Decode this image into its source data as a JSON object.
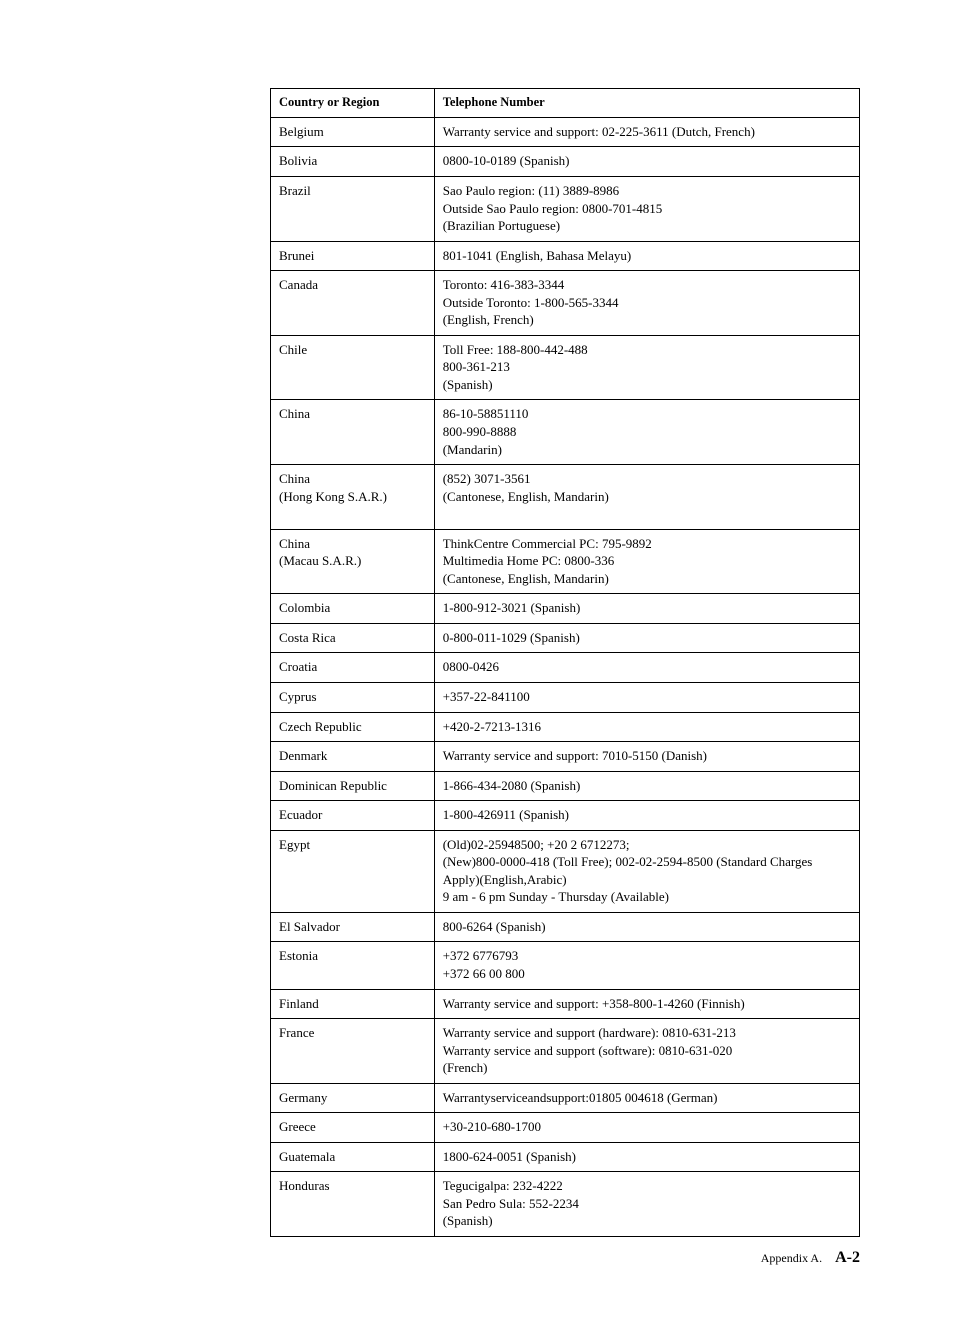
{
  "table": {
    "headers": {
      "country": "Country or Region",
      "phone": "Telephone Number"
    },
    "rows": [
      {
        "country": "Belgium",
        "phone": "Warranty service and support: 02-225-3611 (Dutch, French)"
      },
      {
        "country": "Bolivia",
        "phone": "0800-10-0189 (Spanish)"
      },
      {
        "country": "Brazil",
        "phone": "Sao Paulo region: (11) 3889-8986\nOutside Sao Paulo region: 0800-701-4815\n(Brazilian Portuguese)"
      },
      {
        "country": "Brunei",
        "phone": "801-1041 (English, Bahasa Melayu)"
      },
      {
        "country": "Canada",
        "phone": "Toronto: 416-383-3344\nOutside Toronto: 1-800-565-3344\n(English, French)"
      },
      {
        "country": "Chile",
        "phone": "Toll Free: 188-800-442-488\n800-361-213\n(Spanish)"
      },
      {
        "country": "China",
        "phone": "86-10-58851110\n800-990-8888\n(Mandarin)"
      },
      {
        "country": "China\n(Hong Kong S.A.R.)",
        "phone": "(852) 3071-3561\n(Cantonese, English, Mandarin)\n "
      },
      {
        "country": "China\n(Macau S.A.R.)",
        "phone": "ThinkCentre Commercial PC: 795-9892\nMultimedia Home PC: 0800-336\n(Cantonese, English, Mandarin)"
      },
      {
        "country": "Colombia",
        "phone": "1-800-912-3021 (Spanish)"
      },
      {
        "country": "Costa Rica",
        "phone": "0-800-011-1029 (Spanish)"
      },
      {
        "country": "Croatia",
        "phone": "0800-0426"
      },
      {
        "country": "Cyprus",
        "phone": "+357-22-841100"
      },
      {
        "country": "Czech Republic",
        "phone": "+420-2-7213-1316"
      },
      {
        "country": "Denmark",
        "phone": "Warranty service and support: 7010-5150 (Danish)"
      },
      {
        "country": "Dominican Republic",
        "phone": "1-866-434-2080 (Spanish)"
      },
      {
        "country": "Ecuador",
        "phone": "1-800-426911 (Spanish)"
      },
      {
        "country": "Egypt",
        "phone": "(Old)02-25948500;  +20 2 6712273;\n(New)800-0000-418 (Toll Free); 002-02-2594-8500 (Standard Charges Apply)(English,Arabic)\n9 am - 6 pm Sunday - Thursday (Available)"
      },
      {
        "country": "El Salvador",
        "phone": "800-6264 (Spanish)"
      },
      {
        "country": "Estonia",
        "phone": "+372 6776793\n+372 66 00 800"
      },
      {
        "country": "Finland",
        "phone": "Warranty service and support: +358-800-1-4260 (Finnish)"
      },
      {
        "country": "France",
        "phone": "Warranty service and support (hardware): 0810-631-213\nWarranty service and support (software): 0810-631-020\n(French)"
      },
      {
        "country": "Germany",
        "phone": "Warrantyserviceandsupport:01805 004618 (German)"
      },
      {
        "country": "Greece",
        "phone": "+30-210-680-1700"
      },
      {
        "country": "Guatemala",
        "phone": "1800-624-0051 (Spanish)"
      },
      {
        "country": "Honduras",
        "phone": "Tegucigalpa: 232-4222\nSan Pedro Sula: 552-2234\n(Spanish)"
      }
    ]
  },
  "footer": {
    "appendix": "Appendix A.",
    "page": "A-2"
  }
}
